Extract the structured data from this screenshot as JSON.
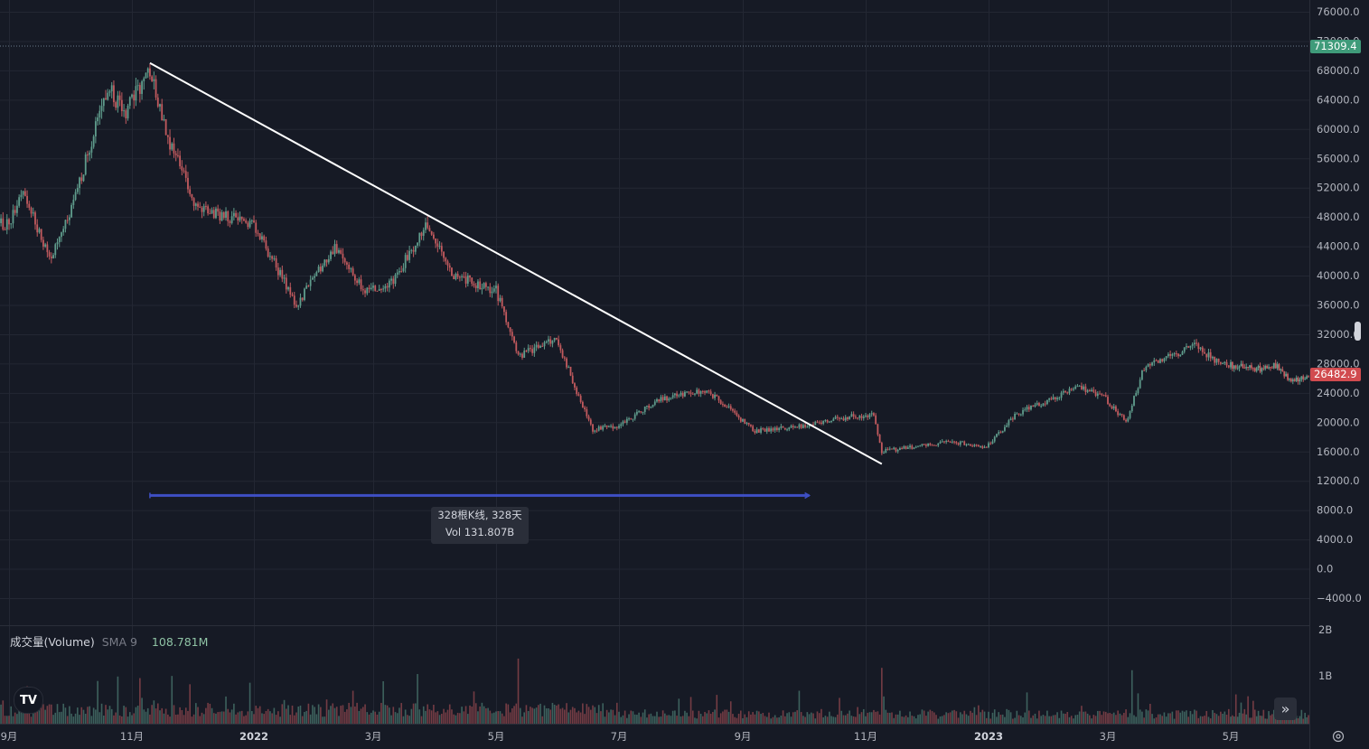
{
  "colors": {
    "background": "#161a25",
    "grid": "#232733",
    "up": "#5f9c8c",
    "down": "#c25a5e",
    "trendline": "#ffffff",
    "range": "#3e4fc4",
    "last_price_bg": "#d14b4f",
    "high_price_bg": "#3f9b7a"
  },
  "price_tags": {
    "high": "71309.4",
    "last": "26482.9"
  },
  "measure_tooltip": {
    "line1": "328根K线, 328天",
    "line2": "Vol 131.807B"
  },
  "volume_legend": {
    "name": "成交量(Volume)",
    "sma": "SMA 9",
    "value": "108.781M"
  },
  "logo": {
    "icon": "tradingview-logo",
    "text": "TV"
  },
  "controls": {
    "scroll_right_icon": "chevrons-right-icon",
    "settings_icon": "settings-icon"
  },
  "chart_data": {
    "type": "candlestick",
    "x_axis_labels": [
      "9月",
      "11月",
      "2022",
      "3月",
      "5月",
      "7月",
      "9月",
      "11月",
      "2023",
      "3月",
      "5月"
    ],
    "bold_labels": [
      "2022",
      "2023"
    ],
    "y_axis_labels": [
      "76000.0",
      "72000.0",
      "68000.0",
      "64000.0",
      "60000.0",
      "56000.0",
      "52000.0",
      "48000.0",
      "44000.0",
      "40000.0",
      "36000.0",
      "32000.0",
      "28000.0",
      "24000.0",
      "20000.0",
      "16000.0",
      "12000.0",
      "8000.0",
      "4000.0",
      "0.0",
      "−4000.0"
    ],
    "volume_axis_labels": [
      "2B",
      "1B"
    ],
    "ylim": [
      -4000,
      76000
    ],
    "price_path_dates": [
      "2021-09-01",
      "2021-09-08",
      "2021-09-21",
      "2021-10-01",
      "2021-10-20",
      "2021-10-28",
      "2021-11-10",
      "2021-11-20",
      "2021-12-04",
      "2021-12-20",
      "2022-01-01",
      "2022-01-22",
      "2022-02-10",
      "2022-02-24",
      "2022-03-10",
      "2022-03-28",
      "2022-04-10",
      "2022-05-01",
      "2022-05-12",
      "2022-05-31",
      "2022-06-13",
      "2022-06-18",
      "2022-07-01",
      "2022-07-20",
      "2022-08-14",
      "2022-09-07",
      "2022-09-30",
      "2022-10-25",
      "2022-11-05",
      "2022-11-09",
      "2022-11-21",
      "2022-12-15",
      "2022-12-31",
      "2023-01-14",
      "2023-01-31",
      "2023-02-15",
      "2023-02-28",
      "2023-03-10",
      "2023-03-19",
      "2023-04-14",
      "2023-04-25",
      "2023-05-15",
      "2023-05-28",
      "2023-06-05",
      "2023-06-15"
    ],
    "price_path_values": [
      47000,
      52000,
      42000,
      48000,
      66000,
      62000,
      68000,
      58000,
      49000,
      48000,
      47000,
      36000,
      44000,
      38000,
      39000,
      47000,
      40000,
      38000,
      29000,
      31500,
      22000,
      19000,
      19500,
      23000,
      24400,
      18800,
      19500,
      20800,
      21000,
      16000,
      16500,
      17300,
      16600,
      21000,
      23100,
      24700,
      23200,
      20000,
      27500,
      30500,
      28000,
      27200,
      27800,
      25500,
      26482.9
    ],
    "trendline": {
      "start": [
        "2021-11-10",
        69000
      ],
      "end": [
        "2022-11-09",
        14300
      ]
    },
    "measure_range": {
      "start": "2021-11-10",
      "end": "2022-10-04",
      "bars": 328,
      "days": 328,
      "volume": "131.807B",
      "price": 10000
    },
    "volume_ylim": [
      0,
      2000000000
    ]
  }
}
